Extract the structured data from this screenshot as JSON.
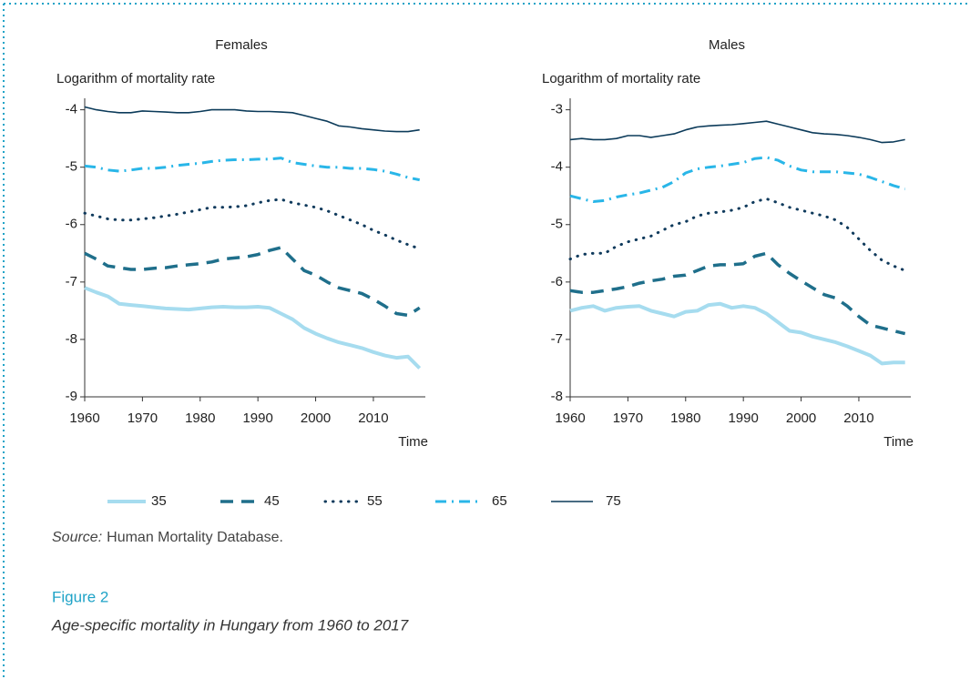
{
  "chart_data": [
    {
      "type": "line",
      "title": "Females",
      "ylabel": "Logarithm of mortality rate",
      "xlabel": "Time",
      "x": [
        1960,
        1962,
        1964,
        1966,
        1968,
        1970,
        1972,
        1974,
        1976,
        1978,
        1980,
        1982,
        1984,
        1986,
        1988,
        1990,
        1992,
        1994,
        1996,
        1998,
        2000,
        2002,
        2004,
        2006,
        2008,
        2010,
        2012,
        2014,
        2016,
        2018
      ],
      "xlim": [
        1960,
        2019
      ],
      "xticks": [
        1960,
        1970,
        1980,
        1990,
        2000,
        2010
      ],
      "ylim": [
        -9,
        -3.8
      ],
      "yticks": [
        -9,
        -8,
        -7,
        -6,
        -5,
        -4
      ],
      "series": [
        {
          "name": "35",
          "color": "#a6dcef",
          "dash": "solid",
          "linewidth": 4,
          "values": [
            -7.1,
            -7.18,
            -7.25,
            -7.38,
            -7.4,
            -7.42,
            -7.44,
            -7.46,
            -7.47,
            -7.48,
            -7.46,
            -7.44,
            -7.43,
            -7.44,
            -7.44,
            -7.43,
            -7.45,
            -7.55,
            -7.65,
            -7.8,
            -7.9,
            -7.98,
            -8.05,
            -8.1,
            -8.15,
            -8.22,
            -8.28,
            -8.32,
            -8.3,
            -8.5
          ]
        },
        {
          "name": "45",
          "color": "#1f6f8b",
          "dash": "dashed",
          "linewidth": 3.5,
          "values": [
            -6.5,
            -6.6,
            -6.72,
            -6.75,
            -6.78,
            -6.78,
            -6.76,
            -6.75,
            -6.72,
            -6.7,
            -6.68,
            -6.65,
            -6.6,
            -6.58,
            -6.56,
            -6.52,
            -6.45,
            -6.4,
            -6.6,
            -6.8,
            -6.88,
            -7.0,
            -7.1,
            -7.15,
            -7.2,
            -7.3,
            -7.42,
            -7.55,
            -7.58,
            -7.45
          ]
        },
        {
          "name": "55",
          "color": "#0f3a5c",
          "dash": "dotted",
          "linewidth": 3,
          "values": [
            -5.8,
            -5.85,
            -5.9,
            -5.92,
            -5.92,
            -5.9,
            -5.88,
            -5.85,
            -5.82,
            -5.78,
            -5.74,
            -5.7,
            -5.7,
            -5.69,
            -5.67,
            -5.62,
            -5.58,
            -5.56,
            -5.62,
            -5.66,
            -5.7,
            -5.76,
            -5.84,
            -5.92,
            -6.0,
            -6.1,
            -6.18,
            -6.27,
            -6.35,
            -6.42
          ]
        },
        {
          "name": "65",
          "color": "#29b6e8",
          "dash": "dashdot",
          "linewidth": 3,
          "values": [
            -4.98,
            -5.0,
            -5.05,
            -5.07,
            -5.05,
            -5.02,
            -5.02,
            -5.0,
            -4.97,
            -4.95,
            -4.93,
            -4.9,
            -4.88,
            -4.87,
            -4.87,
            -4.86,
            -4.86,
            -4.84,
            -4.92,
            -4.95,
            -4.98,
            -5.0,
            -5.0,
            -5.02,
            -5.02,
            -5.04,
            -5.07,
            -5.12,
            -5.18,
            -5.22
          ]
        },
        {
          "name": "75",
          "color": "#0c3b5a",
          "dash": "solid",
          "linewidth": 1.6,
          "values": [
            -3.95,
            -4.0,
            -4.03,
            -4.05,
            -4.05,
            -4.02,
            -4.03,
            -4.04,
            -4.05,
            -4.05,
            -4.03,
            -4.0,
            -4.0,
            -4.0,
            -4.02,
            -4.03,
            -4.03,
            -4.04,
            -4.05,
            -4.1,
            -4.15,
            -4.2,
            -4.28,
            -4.3,
            -4.33,
            -4.35,
            -4.37,
            -4.38,
            -4.38,
            -4.35
          ]
        }
      ]
    },
    {
      "type": "line",
      "title": "Males",
      "ylabel": "Logarithm of mortality rate",
      "xlabel": "Time",
      "x": [
        1960,
        1962,
        1964,
        1966,
        1968,
        1970,
        1972,
        1974,
        1976,
        1978,
        1980,
        1982,
        1984,
        1986,
        1988,
        1990,
        1992,
        1994,
        1996,
        1998,
        2000,
        2002,
        2004,
        2006,
        2008,
        2010,
        2012,
        2014,
        2016,
        2018
      ],
      "xlim": [
        1960,
        2019
      ],
      "xticks": [
        1960,
        1970,
        1980,
        1990,
        2000,
        2010
      ],
      "ylim": [
        -8,
        -2.8
      ],
      "yticks": [
        -8,
        -7,
        -6,
        -5,
        -4,
        -3
      ],
      "series": [
        {
          "color": "#a6dcef",
          "dash": "solid",
          "linewidth": 4,
          "values": [
            -6.5,
            -6.45,
            -6.42,
            -6.5,
            -6.45,
            -6.43,
            -6.42,
            -6.5,
            -6.55,
            -6.6,
            -6.52,
            -6.5,
            -6.4,
            -6.38,
            -6.45,
            -6.42,
            -6.45,
            -6.55,
            -6.7,
            -6.85,
            -6.88,
            -6.95,
            -7.0,
            -7.05,
            -7.12,
            -7.2,
            -7.28,
            -7.42,
            -7.4,
            -7.4
          ]
        },
        {
          "color": "#1f6f8b",
          "dash": "dashed",
          "linewidth": 3.5,
          "values": [
            -6.15,
            -6.18,
            -6.18,
            -6.15,
            -6.12,
            -6.08,
            -6.02,
            -5.98,
            -5.95,
            -5.9,
            -5.88,
            -5.8,
            -5.72,
            -5.7,
            -5.7,
            -5.68,
            -5.55,
            -5.5,
            -5.7,
            -5.85,
            -5.98,
            -6.1,
            -6.22,
            -6.28,
            -6.42,
            -6.6,
            -6.75,
            -6.8,
            -6.85,
            -6.9
          ]
        },
        {
          "color": "#0f3a5c",
          "dash": "dotted",
          "linewidth": 3,
          "values": [
            -5.6,
            -5.52,
            -5.5,
            -5.5,
            -5.38,
            -5.3,
            -5.25,
            -5.2,
            -5.1,
            -5.0,
            -4.95,
            -4.85,
            -4.8,
            -4.78,
            -4.75,
            -4.7,
            -4.6,
            -4.55,
            -4.62,
            -4.7,
            -4.75,
            -4.8,
            -4.85,
            -4.92,
            -5.05,
            -5.25,
            -5.45,
            -5.62,
            -5.72,
            -5.8
          ]
        },
        {
          "color": "#29b6e8",
          "dash": "dashdot",
          "linewidth": 3,
          "values": [
            -4.5,
            -4.55,
            -4.6,
            -4.58,
            -4.52,
            -4.48,
            -4.45,
            -4.4,
            -4.35,
            -4.25,
            -4.1,
            -4.03,
            -4.0,
            -3.98,
            -3.95,
            -3.92,
            -3.85,
            -3.83,
            -3.88,
            -3.98,
            -4.05,
            -4.08,
            -4.08,
            -4.08,
            -4.1,
            -4.12,
            -4.18,
            -4.25,
            -4.32,
            -4.38
          ]
        },
        {
          "color": "#0c3b5a",
          "dash": "solid",
          "linewidth": 1.6,
          "values": [
            -3.52,
            -3.5,
            -3.52,
            -3.52,
            -3.5,
            -3.45,
            -3.45,
            -3.48,
            -3.45,
            -3.42,
            -3.35,
            -3.3,
            -3.28,
            -3.27,
            -3.26,
            -3.24,
            -3.22,
            -3.2,
            -3.25,
            -3.3,
            -3.35,
            -3.4,
            -3.42,
            -3.43,
            -3.45,
            -3.48,
            -3.52,
            -3.57,
            -3.56,
            -3.52
          ]
        }
      ]
    }
  ],
  "source_label": "Source:",
  "source": "Human Mortality Database.",
  "figure_label": "Figure 2",
  "figure_caption": "Age-specific mortality in Hungary from 1960 to 2017"
}
